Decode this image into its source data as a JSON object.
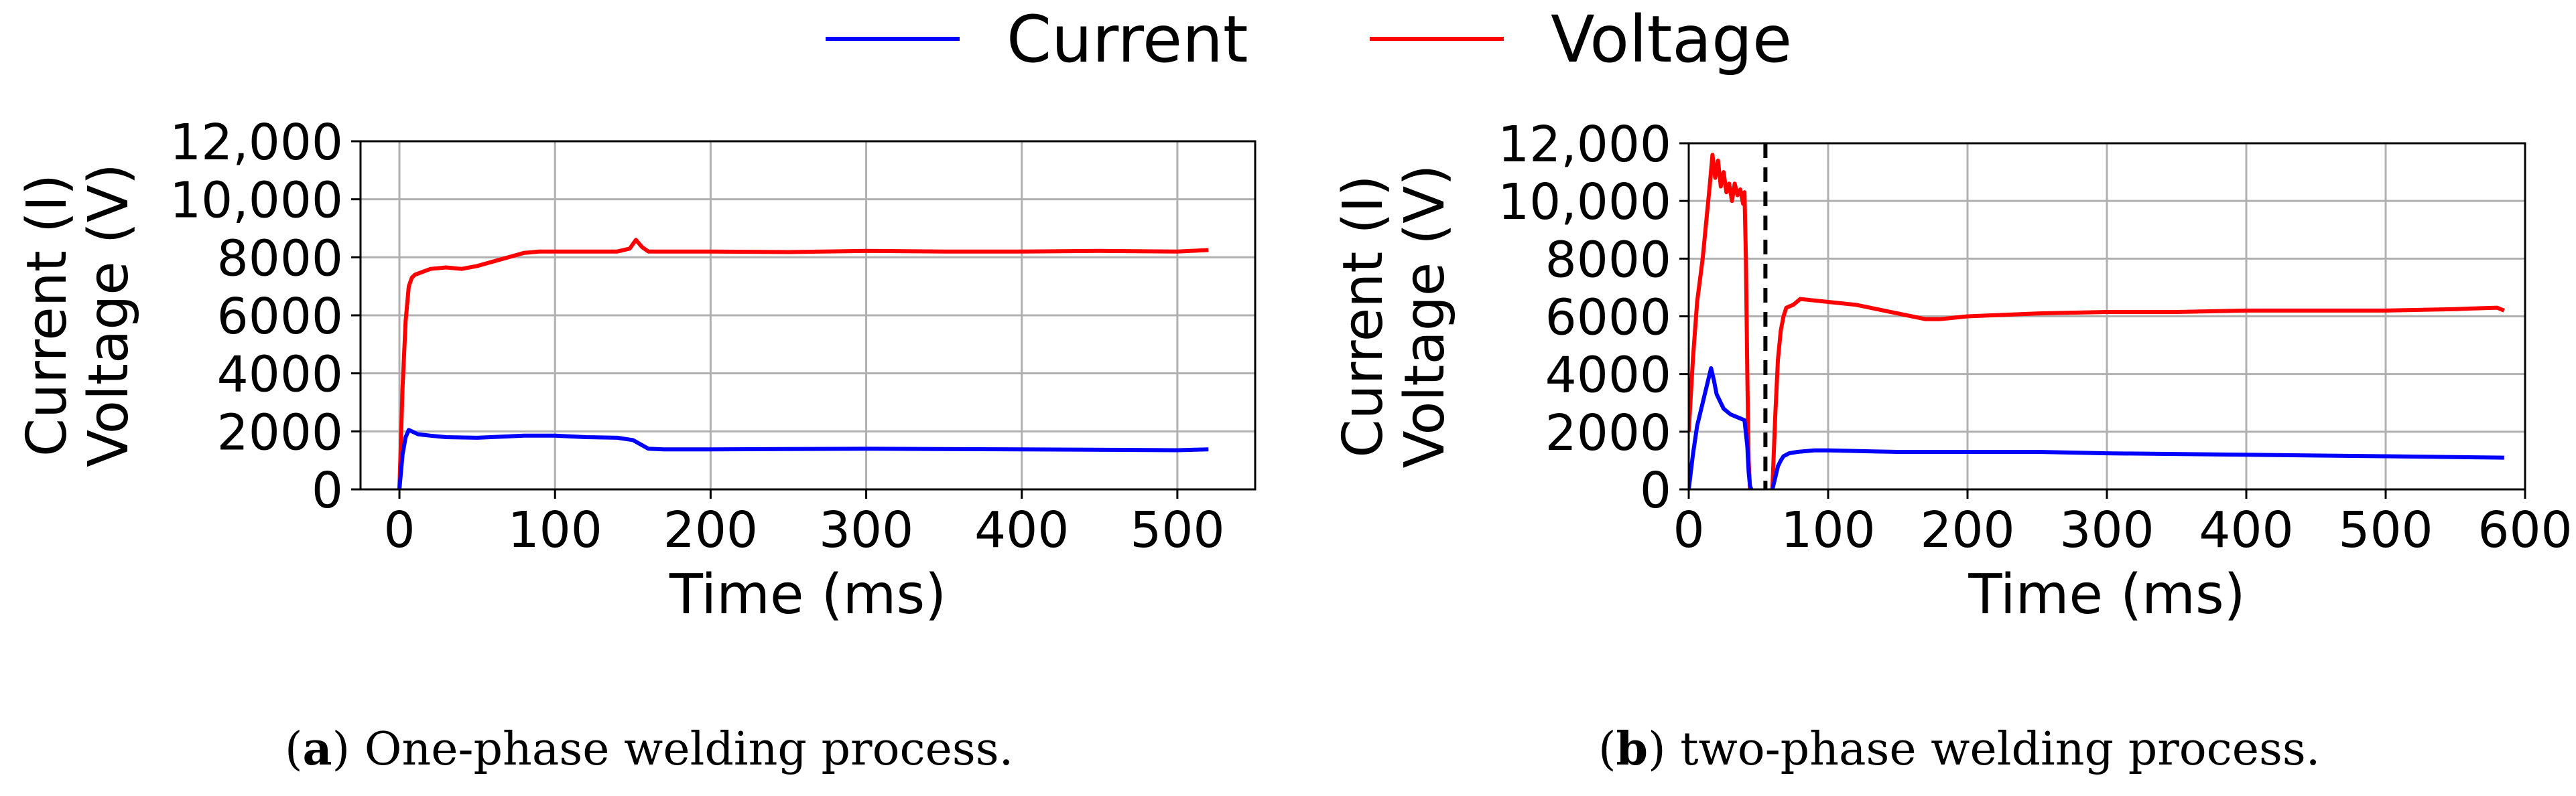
{
  "legend": {
    "entries": [
      {
        "label": "Current",
        "color": "#0000ff"
      },
      {
        "label": "Voltage",
        "color": "#ff0000"
      }
    ]
  },
  "captions": [
    {
      "letter": "a",
      "text": ") One-phase welding process.",
      "open": "("
    },
    {
      "letter": "b",
      "text": ") two-phase welding process.",
      "open": "("
    }
  ],
  "chart_data": [
    {
      "type": "line",
      "xlabel": "Time (ms)",
      "ylabel_lines": [
        "Current (I)",
        "Voltage (V)"
      ],
      "xlim": [
        -25,
        550
      ],
      "ylim": [
        0,
        12000
      ],
      "xticks": [
        0,
        100,
        200,
        300,
        400,
        500
      ],
      "xtick_labels": [
        "0",
        "100",
        "200",
        "300",
        "400",
        "500"
      ],
      "yticks": [
        0,
        2000,
        4000,
        6000,
        8000,
        10000,
        12000
      ],
      "ytick_labels": [
        "0",
        "2000",
        "4000",
        "6000",
        "8000",
        "10,000",
        "12,000"
      ],
      "grid": true,
      "series": [
        {
          "name": "Voltage",
          "color": "#ff0000",
          "x": [
            0,
            2,
            4,
            6,
            8,
            10,
            15,
            20,
            30,
            40,
            50,
            60,
            70,
            80,
            90,
            100,
            120,
            140,
            148,
            152,
            156,
            160,
            170,
            200,
            250,
            300,
            350,
            400,
            450,
            500,
            520
          ],
          "y": [
            0,
            3500,
            5800,
            7000,
            7300,
            7400,
            7500,
            7600,
            7650,
            7600,
            7700,
            7850,
            8000,
            8150,
            8200,
            8200,
            8200,
            8200,
            8300,
            8600,
            8350,
            8200,
            8200,
            8200,
            8180,
            8220,
            8200,
            8200,
            8220,
            8200,
            8250
          ]
        },
        {
          "name": "Current",
          "color": "#0000ff",
          "x": [
            0,
            2,
            4,
            6,
            8,
            12,
            20,
            30,
            50,
            80,
            100,
            120,
            140,
            150,
            160,
            170,
            200,
            300,
            400,
            500,
            520
          ],
          "y": [
            0,
            1200,
            1800,
            2050,
            2000,
            1900,
            1850,
            1800,
            1780,
            1850,
            1850,
            1800,
            1780,
            1700,
            1400,
            1380,
            1380,
            1400,
            1380,
            1350,
            1380
          ]
        }
      ]
    },
    {
      "type": "line",
      "xlabel": "Time (ms)",
      "ylabel_lines": [
        "Current (I)",
        "Voltage (V)"
      ],
      "xlim": [
        0,
        600
      ],
      "ylim": [
        0,
        12000
      ],
      "xticks": [
        0,
        100,
        200,
        300,
        400,
        500,
        600
      ],
      "xtick_labels": [
        "0",
        "100",
        "200",
        "300",
        "400",
        "500",
        "600"
      ],
      "yticks": [
        0,
        2000,
        4000,
        6000,
        8000,
        10000,
        12000
      ],
      "ytick_labels": [
        "0",
        "2000",
        "4000",
        "6000",
        "8000",
        "10,000",
        "12,000"
      ],
      "grid": true,
      "vline_x": 55,
      "series": [
        {
          "name": "Voltage",
          "color": "#ff0000",
          "segments": [
            {
              "x": [
                0,
                3,
                6,
                10,
                13,
                15,
                17,
                19,
                21,
                23,
                25,
                27,
                29,
                31,
                33,
                35,
                37,
                39,
                40,
                41,
                42,
                43,
                44,
                45
              ],
              "y": [
                2000,
                4500,
                6500,
                8000,
                9500,
                10500,
                11600,
                10800,
                11400,
                10500,
                11000,
                10300,
                10600,
                10000,
                10600,
                10200,
                10400,
                9900,
                10300,
                8000,
                4000,
                1000,
                0,
                0
              ]
            },
            {
              "x": [
                60,
                62,
                64,
                66,
                68,
                70,
                75,
                80,
                90,
                100,
                120,
                140,
                160,
                170,
                180,
                200,
                250,
                300,
                350,
                400,
                450,
                500,
                550,
                580,
                585
              ],
              "y": [
                0,
                2500,
                4500,
                5500,
                6000,
                6300,
                6400,
                6600,
                6550,
                6500,
                6400,
                6200,
                6000,
                5900,
                5900,
                6000,
                6100,
                6150,
                6150,
                6200,
                6200,
                6200,
                6250,
                6300,
                6200
              ]
            }
          ]
        },
        {
          "name": "Current",
          "color": "#0000ff",
          "segments": [
            {
              "x": [
                0,
                3,
                6,
                10,
                14,
                16,
                18,
                20,
                25,
                30,
                35,
                40,
                42,
                43,
                44,
                45
              ],
              "y": [
                0,
                1200,
                2200,
                3000,
                3800,
                4200,
                3800,
                3300,
                2800,
                2600,
                2500,
                2400,
                1500,
                600,
                100,
                0
              ]
            },
            {
              "x": [
                60,
                62,
                64,
                66,
                68,
                72,
                78,
                90,
                100,
                150,
                200,
                250,
                300,
                400,
                500,
                585
              ],
              "y": [
                0,
                400,
                800,
                1000,
                1150,
                1250,
                1300,
                1350,
                1350,
                1300,
                1300,
                1300,
                1250,
                1200,
                1150,
                1100
              ]
            }
          ]
        }
      ]
    }
  ]
}
